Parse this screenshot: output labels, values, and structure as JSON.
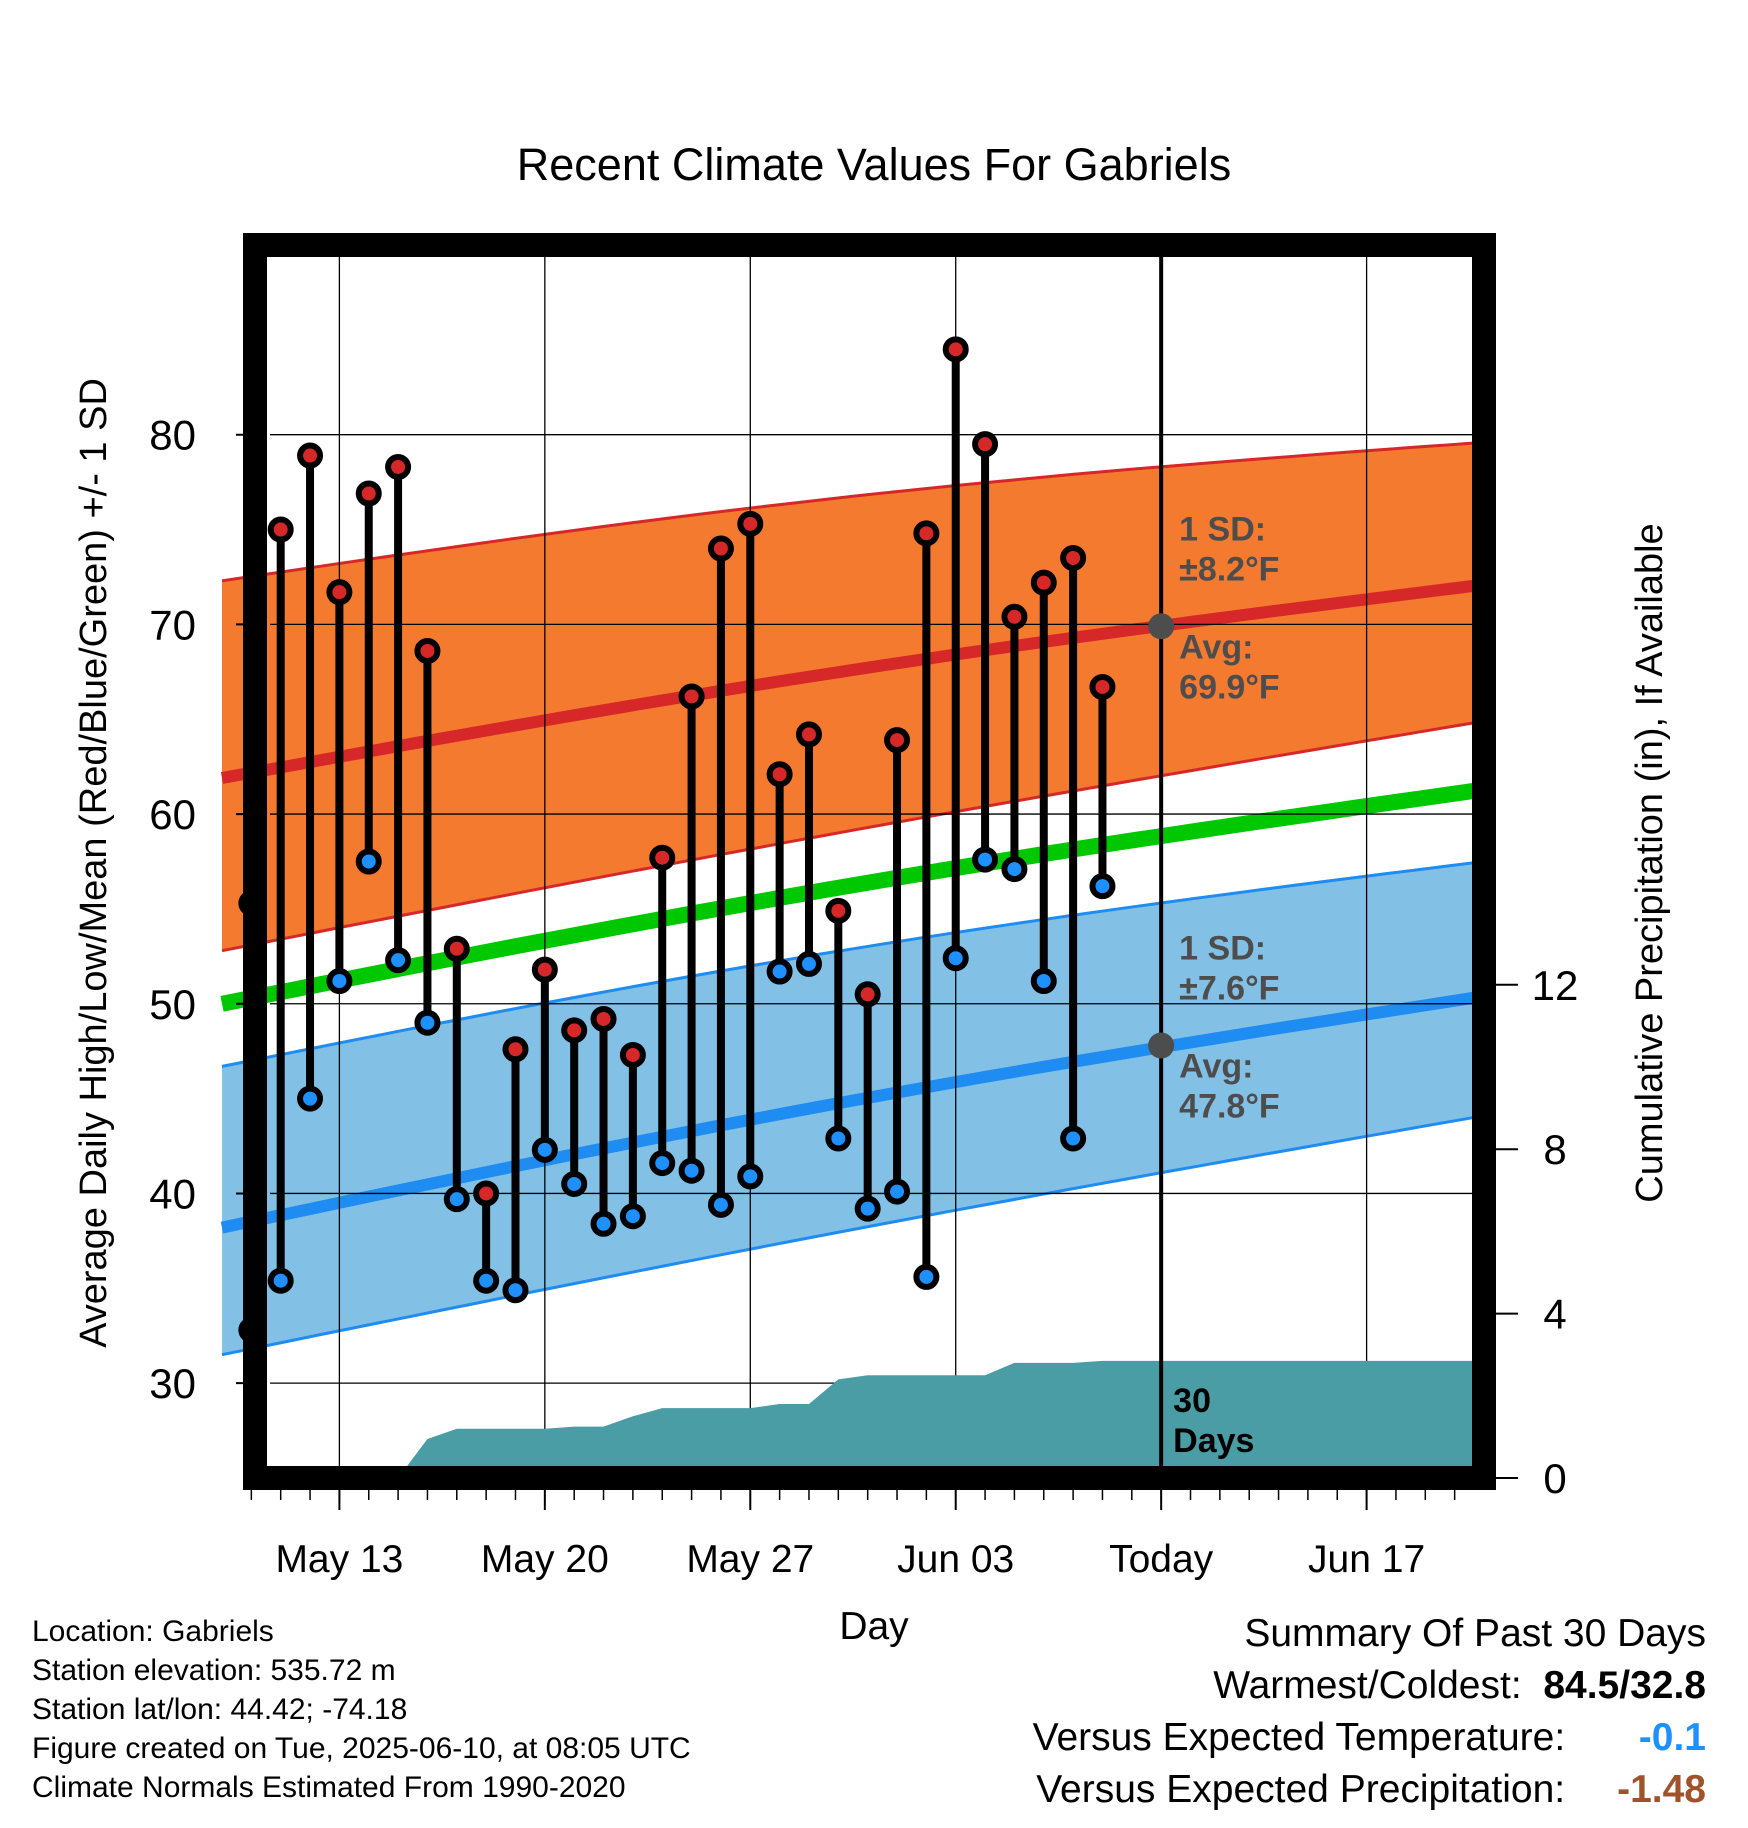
{
  "chart_data": {
    "type": "line",
    "title": "Recent Climate Values For Gabriels",
    "xlabel": "Day",
    "ylabel": "Average Daily High/Low/Mean (Red/Blue/Green) +/- 1 SD",
    "y2label": "Cumulative Precipitation (in), If Available",
    "ylim": [
      25,
      90
    ],
    "y2lim": [
      0,
      30
    ],
    "yticks": [
      30,
      40,
      50,
      60,
      70,
      80
    ],
    "y2ticks": [
      0,
      4,
      8,
      12
    ],
    "xlim": [
      "2025-05-09",
      "2025-06-21"
    ],
    "xticks": [
      {
        "date": "2025-05-13",
        "label": "May 13"
      },
      {
        "date": "2025-05-20",
        "label": "May 20"
      },
      {
        "date": "2025-05-27",
        "label": "May 27"
      },
      {
        "date": "2025-06-03",
        "label": "Jun 03"
      },
      {
        "date": "2025-06-10",
        "label": "Today"
      },
      {
        "date": "2025-06-17",
        "label": "Jun 17"
      }
    ],
    "grid": true,
    "today": "2025-06-10",
    "today_box_label": [
      "30",
      "Days"
    ],
    "colors": {
      "high_band": "#f47a30",
      "high_line": "#d62828",
      "high_band_edge": "#d62828",
      "low_band": "#82c0e6",
      "low_line": "#1e8cf0",
      "low_band_edge": "#1e8cf0",
      "mean_line": "#00c800",
      "precip": "#4a9ca5",
      "high_marker": "#d62828",
      "low_marker": "#1e90ff",
      "annotation": "#4d4d4d"
    },
    "normals": {
      "dates": [
        "2025-05-09",
        "2025-06-21"
      ],
      "avg_high": [
        61.9,
        72.1
      ],
      "high_sd_upper": [
        72.3,
        79.6
      ],
      "high_sd_lower": [
        52.8,
        64.9
      ],
      "avg_low": [
        38.2,
        50.4
      ],
      "low_sd_upper": [
        46.7,
        57.5
      ],
      "low_sd_lower": [
        31.5,
        44.1
      ],
      "avg_mean": [
        50.0,
        61.3
      ]
    },
    "annotations": {
      "high_sd_label": [
        "1 SD:",
        "±8.2°F"
      ],
      "high_avg_label": [
        "Avg:",
        "69.9°F"
      ],
      "high_today_avg": 69.9,
      "low_sd_label": [
        "1 SD:",
        "±7.6°F"
      ],
      "low_avg_label": [
        "Avg:",
        "47.8°F"
      ],
      "low_today_avg": 47.8
    },
    "series": [
      {
        "name": "High",
        "dates": [
          "2025-05-10",
          "2025-05-11",
          "2025-05-12",
          "2025-05-13",
          "2025-05-14",
          "2025-05-15",
          "2025-05-16",
          "2025-05-17",
          "2025-05-18",
          "2025-05-19",
          "2025-05-20",
          "2025-05-21",
          "2025-05-22",
          "2025-05-23",
          "2025-05-24",
          "2025-05-25",
          "2025-05-26",
          "2025-05-27",
          "2025-05-28",
          "2025-05-29",
          "2025-05-30",
          "2025-05-31",
          "2025-06-01",
          "2025-06-02",
          "2025-06-03",
          "2025-06-04",
          "2025-06-05",
          "2025-06-06",
          "2025-06-07",
          "2025-06-08",
          "2025-06-09"
        ],
        "values": [
          55.3,
          75.0,
          78.9,
          71.7,
          76.9,
          78.3,
          68.6,
          52.9,
          40.0,
          47.6,
          51.8,
          48.6,
          49.2,
          47.3,
          57.7,
          66.2,
          74.0,
          75.3,
          62.1,
          64.2,
          54.9,
          50.5,
          63.9,
          74.8,
          84.5,
          79.5,
          70.4,
          72.2,
          73.5,
          66.7,
          null
        ]
      },
      {
        "name": "Low",
        "dates": [
          "2025-05-10",
          "2025-05-11",
          "2025-05-12",
          "2025-05-13",
          "2025-05-14",
          "2025-05-15",
          "2025-05-16",
          "2025-05-17",
          "2025-05-18",
          "2025-05-19",
          "2025-05-20",
          "2025-05-21",
          "2025-05-22",
          "2025-05-23",
          "2025-05-24",
          "2025-05-25",
          "2025-05-26",
          "2025-05-27",
          "2025-05-28",
          "2025-05-29",
          "2025-05-30",
          "2025-05-31",
          "2025-06-01",
          "2025-06-02",
          "2025-06-03",
          "2025-06-04",
          "2025-06-05",
          "2025-06-06",
          "2025-06-07",
          "2025-06-08",
          "2025-06-09"
        ],
        "values": [
          32.8,
          35.4,
          45.0,
          51.2,
          57.5,
          52.3,
          49.0,
          39.7,
          35.4,
          34.9,
          42.3,
          40.5,
          38.4,
          38.8,
          41.6,
          41.2,
          39.4,
          40.9,
          51.7,
          52.1,
          42.9,
          39.2,
          40.1,
          35.6,
          52.4,
          57.6,
          57.1,
          51.2,
          42.9,
          56.2,
          null
        ]
      },
      {
        "name": "Cumulative Precipitation",
        "dates": [
          "2025-05-15",
          "2025-05-16",
          "2025-05-17",
          "2025-05-18",
          "2025-05-19",
          "2025-05-20",
          "2025-05-21",
          "2025-05-22",
          "2025-05-23",
          "2025-05-24",
          "2025-05-25",
          "2025-05-26",
          "2025-05-27",
          "2025-05-28",
          "2025-05-29",
          "2025-05-30",
          "2025-05-31",
          "2025-06-01",
          "2025-06-02",
          "2025-06-03",
          "2025-06-04",
          "2025-06-05",
          "2025-06-06",
          "2025-06-07",
          "2025-06-08",
          "2025-06-09",
          "2025-06-10",
          "2025-06-21"
        ],
        "values": [
          0.0,
          0.95,
          1.2,
          1.2,
          1.2,
          1.2,
          1.25,
          1.25,
          1.5,
          1.7,
          1.7,
          1.7,
          1.7,
          1.8,
          1.8,
          2.4,
          2.5,
          2.5,
          2.5,
          2.5,
          2.5,
          2.8,
          2.8,
          2.8,
          2.85,
          2.85,
          2.85,
          2.85
        ]
      }
    ]
  },
  "footer": {
    "location": "Location: Gabriels",
    "elevation": "Station elevation: 535.72 m",
    "latlon": "Station lat/lon: 44.42; -74.18",
    "created": "Figure created on Tue, 2025-06-10, at 08:05 UTC",
    "normals": "Climate Normals Estimated From 1990-2020"
  },
  "summary": {
    "title": "Summary Of Past 30 Days",
    "warmest_label": "Warmest/Coldest:",
    "warmest_value": "84.5/32.8",
    "temp_label": "Versus Expected Temperature:",
    "temp_value": "-0.1",
    "temp_color": "#1e90ff",
    "precip_label": "Versus Expected Precipitation:",
    "precip_value": "-1.48",
    "precip_color": "#a0522d"
  }
}
